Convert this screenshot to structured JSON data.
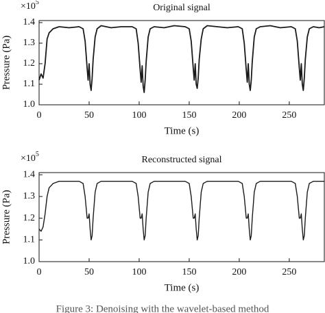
{
  "chart_data": [
    {
      "type": "line",
      "title": "Original signal",
      "x_label": "Time (s)",
      "y_label": "Pressure (Pa)",
      "y_multiplier": "×10",
      "y_multiplier_exponent": "5",
      "x": [
        0,
        2,
        4,
        6,
        8,
        10,
        14,
        20,
        30,
        40,
        44,
        46,
        48,
        49,
        50,
        51,
        52,
        53,
        54,
        56,
        58,
        62,
        72,
        82,
        93,
        97,
        99,
        101,
        102,
        103,
        104,
        105,
        106,
        107,
        109,
        111,
        115,
        125,
        135,
        146,
        150,
        152,
        154,
        155,
        156,
        157,
        158,
        159,
        160,
        162,
        164,
        168,
        178,
        188,
        199,
        203,
        205,
        207,
        208,
        209,
        210,
        211,
        212,
        213,
        215,
        217,
        221,
        231,
        241,
        252,
        256,
        258,
        260,
        261,
        262,
        263,
        264,
        265,
        266,
        268,
        270,
        274,
        280,
        285
      ],
      "series": [
        {
          "color": "#1a1a1a",
          "values": [
            1.12,
            1.15,
            1.13,
            1.2,
            1.32,
            1.35,
            1.37,
            1.38,
            1.375,
            1.38,
            1.37,
            1.31,
            1.18,
            1.12,
            1.2,
            1.1,
            1.07,
            1.13,
            1.22,
            1.33,
            1.37,
            1.385,
            1.375,
            1.38,
            1.38,
            1.37,
            1.3,
            1.17,
            1.11,
            1.19,
            1.09,
            1.06,
            1.12,
            1.21,
            1.33,
            1.37,
            1.38,
            1.375,
            1.385,
            1.38,
            1.37,
            1.31,
            1.18,
            1.12,
            1.2,
            1.1,
            1.08,
            1.13,
            1.22,
            1.32,
            1.37,
            1.385,
            1.38,
            1.375,
            1.38,
            1.37,
            1.3,
            1.17,
            1.11,
            1.2,
            1.1,
            1.07,
            1.12,
            1.21,
            1.33,
            1.37,
            1.38,
            1.385,
            1.375,
            1.38,
            1.37,
            1.31,
            1.18,
            1.12,
            1.2,
            1.1,
            1.07,
            1.13,
            1.22,
            1.33,
            1.37,
            1.38,
            1.375,
            1.38
          ]
        }
      ],
      "xlim": [
        0,
        285
      ],
      "ylim": [
        1.0,
        1.41
      ],
      "xticks": [
        0,
        50,
        100,
        150,
        200,
        250
      ],
      "yticks": [
        {
          "value": 1,
          "label": "1.0"
        },
        1.1,
        1.2,
        1.3,
        1.4
      ]
    },
    {
      "type": "line",
      "title": "Reconstructed signal",
      "x_label": "Time (s)",
      "y_label": "Pressure (Pa)",
      "y_multiplier": "×10",
      "y_multiplier_exponent": "5",
      "x": [
        0,
        2,
        4,
        6,
        8,
        10,
        14,
        20,
        30,
        40,
        44,
        46,
        48,
        49,
        50,
        51,
        52,
        53,
        54,
        56,
        58,
        62,
        72,
        82,
        93,
        97,
        99,
        101,
        102,
        103,
        104,
        105,
        106,
        107,
        109,
        111,
        115,
        125,
        135,
        146,
        150,
        152,
        154,
        155,
        156,
        157,
        158,
        159,
        160,
        162,
        164,
        168,
        178,
        188,
        199,
        203,
        205,
        207,
        208,
        209,
        210,
        211,
        212,
        213,
        215,
        217,
        221,
        231,
        241,
        252,
        256,
        258,
        260,
        261,
        262,
        263,
        264,
        265,
        266,
        268,
        270,
        274,
        280,
        285
      ],
      "series": [
        {
          "color": "#1a1a1a",
          "values": [
            1.15,
            1.14,
            1.16,
            1.22,
            1.3,
            1.34,
            1.36,
            1.37,
            1.37,
            1.37,
            1.36,
            1.3,
            1.2,
            1.2,
            1.22,
            1.15,
            1.1,
            1.12,
            1.2,
            1.32,
            1.36,
            1.37,
            1.37,
            1.37,
            1.37,
            1.36,
            1.3,
            1.2,
            1.2,
            1.22,
            1.15,
            1.1,
            1.12,
            1.2,
            1.32,
            1.36,
            1.37,
            1.37,
            1.37,
            1.37,
            1.36,
            1.3,
            1.2,
            1.2,
            1.22,
            1.15,
            1.1,
            1.12,
            1.2,
            1.32,
            1.36,
            1.37,
            1.37,
            1.37,
            1.37,
            1.36,
            1.3,
            1.2,
            1.2,
            1.22,
            1.15,
            1.1,
            1.12,
            1.2,
            1.32,
            1.36,
            1.37,
            1.37,
            1.37,
            1.37,
            1.36,
            1.3,
            1.2,
            1.2,
            1.22,
            1.15,
            1.1,
            1.12,
            1.2,
            1.32,
            1.36,
            1.37,
            1.37,
            1.37
          ]
        }
      ],
      "xlim": [
        0,
        285
      ],
      "ylim": [
        1.0,
        1.41
      ],
      "xticks": [
        0,
        50,
        100,
        150,
        200,
        250
      ],
      "yticks": [
        {
          "value": 1,
          "label": "1.0"
        },
        1.1,
        1.2,
        1.3,
        1.4
      ]
    }
  ],
  "caption": "Figure 3: Denoising with the wavelet-based method"
}
